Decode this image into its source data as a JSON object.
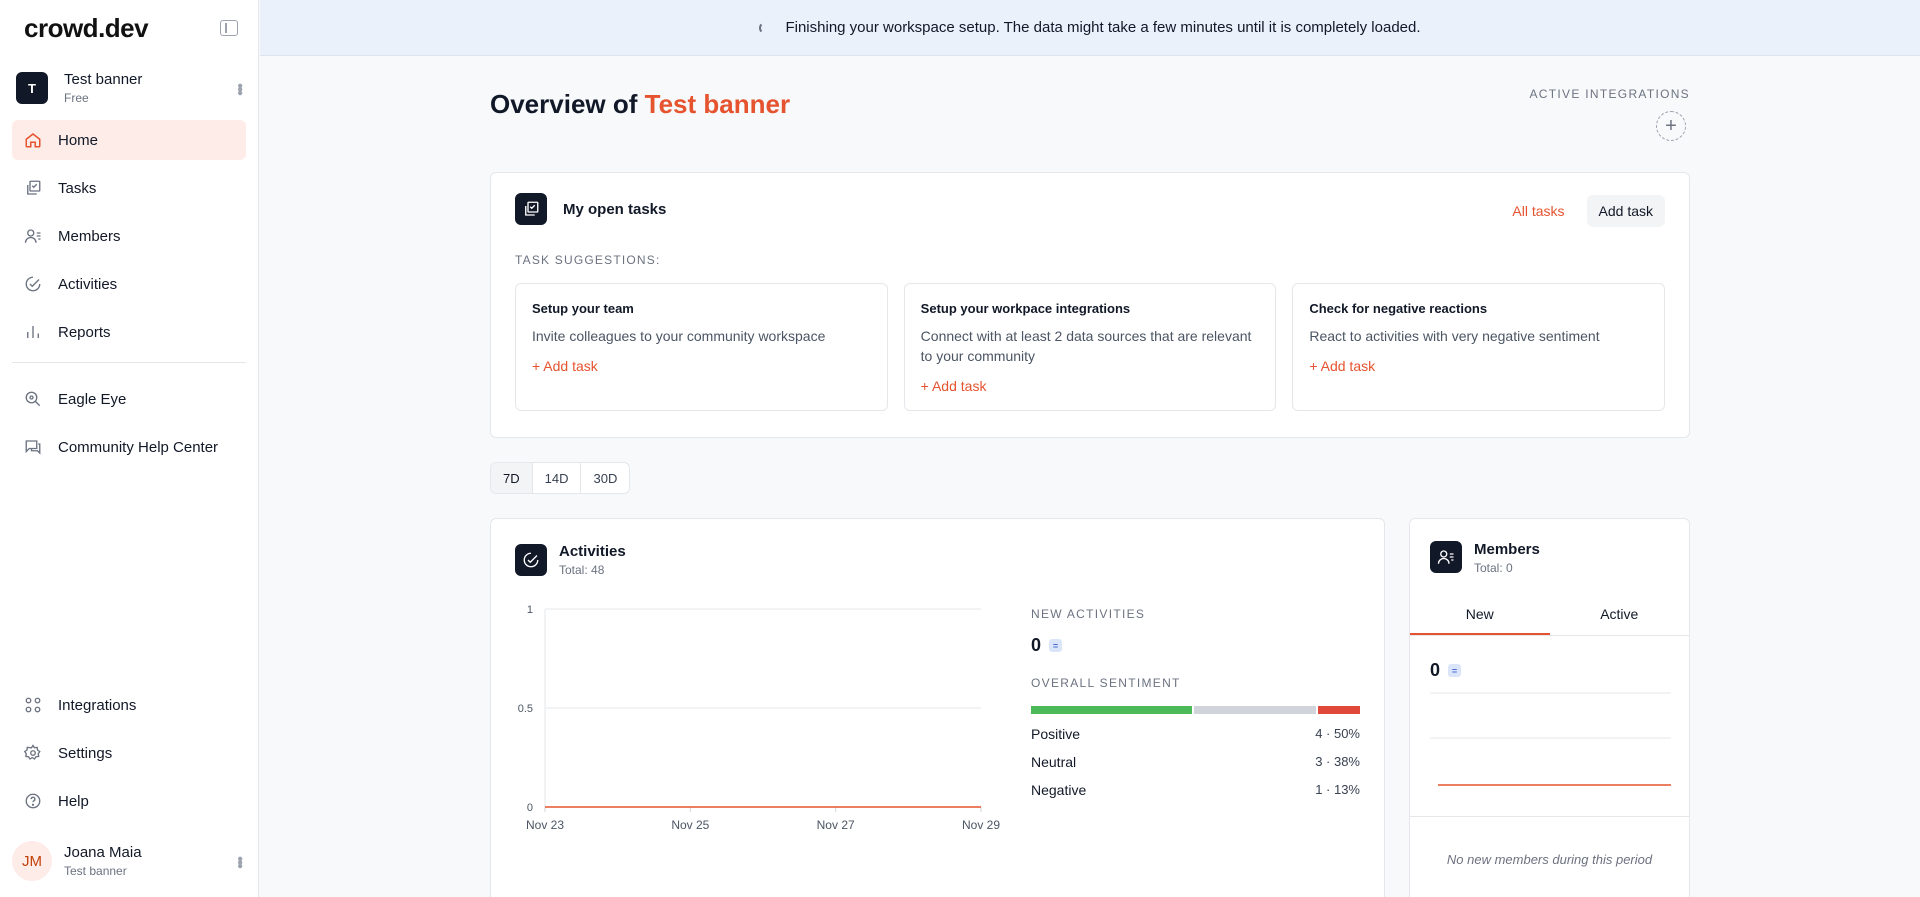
{
  "app": {
    "logo": "crowd.dev"
  },
  "workspace": {
    "initial": "T",
    "name": "Test banner",
    "plan": "Free"
  },
  "nav": {
    "home": "Home",
    "tasks": "Tasks",
    "members": "Members",
    "activities": "Activities",
    "reports": "Reports",
    "eagle_eye": "Eagle Eye",
    "help_center": "Community Help Center",
    "integrations": "Integrations",
    "settings": "Settings",
    "help": "Help"
  },
  "user": {
    "initials": "JM",
    "name": "Joana Maia",
    "workspace": "Test banner"
  },
  "banner": {
    "message": "Finishing your workspace setup. The data might take a few minutes until it is completely loaded."
  },
  "page": {
    "title_prefix": "Overview of",
    "title_accent": "Test banner",
    "integrations_label": "ACTIVE INTEGRATIONS"
  },
  "tasks": {
    "title": "My open tasks",
    "all_link": "All tasks",
    "add_button": "Add task",
    "suggestions_label": "TASK SUGGESTIONS:",
    "suggestions": [
      {
        "title": "Setup your team",
        "desc": "Invite colleagues to your community workspace",
        "action": "+ Add task"
      },
      {
        "title": "Setup your workpace integrations",
        "desc": "Connect with at least 2 data sources that are relevant to your community",
        "action": "+ Add task"
      },
      {
        "title": "Check for negative reactions",
        "desc": "React to activities with very negative sentiment",
        "action": "+ Add task"
      }
    ]
  },
  "period": {
    "options": [
      "7D",
      "14D",
      "30D"
    ],
    "selected": "7D"
  },
  "activities": {
    "title": "Activities",
    "total": "Total: 48",
    "new_label": "NEW ACTIVITIES",
    "new_value": "0",
    "new_badge": "=",
    "sentiment_label": "OVERALL SENTIMENT",
    "sentiment": [
      {
        "name": "Positive",
        "value": "4 · 50%",
        "share": 50,
        "color": "#4cba58"
      },
      {
        "name": "Neutral",
        "value": "3 · 38%",
        "share": 38,
        "color": "#d1d5db"
      },
      {
        "name": "Negative",
        "value": "1 · 13%",
        "share": 13,
        "color": "#e0483a"
      }
    ]
  },
  "chart_data": {
    "type": "line",
    "x": [
      "Nov 23",
      "Nov 24",
      "Nov 25",
      "Nov 26",
      "Nov 27",
      "Nov 28",
      "Nov 29"
    ],
    "x_tick_labels": [
      "Nov 23",
      "Nov 25",
      "Nov 27",
      "Nov 29"
    ],
    "y_tick_labels": [
      "1",
      "0.5",
      "0"
    ],
    "series": [
      {
        "values": [
          0,
          0,
          0,
          0,
          0,
          0,
          0
        ]
      }
    ],
    "ylim": [
      0,
      1
    ],
    "grid": true,
    "line_color": "#e5532f"
  },
  "members": {
    "title": "Members",
    "total": "Total: 0",
    "tabs": [
      "New",
      "Active"
    ],
    "value": "0",
    "badge": "=",
    "empty": "No new members during this period"
  }
}
